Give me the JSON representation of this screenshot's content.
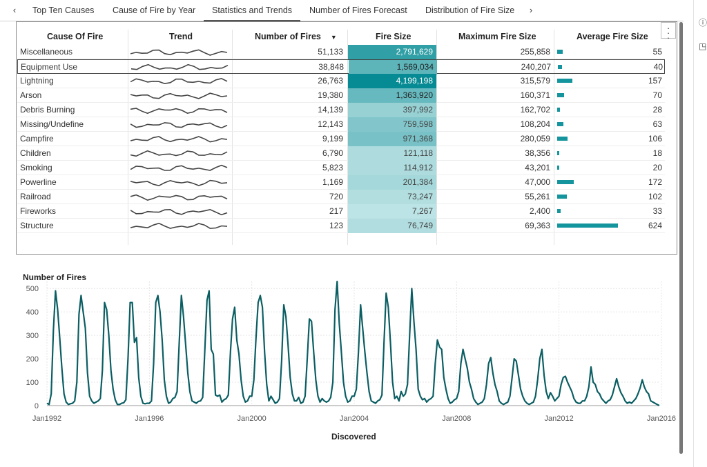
{
  "tabs": {
    "prev_icon": "chevron-left-icon",
    "next_icon": "chevron-right-icon",
    "items": [
      {
        "label": "Top Ten Causes"
      },
      {
        "label": "Cause of Fire by Year"
      },
      {
        "label": "Statistics and Trends"
      },
      {
        "label": "Number of Fires Forecast"
      },
      {
        "label": "Distribution of Fire Size"
      }
    ],
    "active_index": 2
  },
  "table": {
    "headers": {
      "cause": "Cause Of Fire",
      "trend": "Trend",
      "num_fires": "Number of Fires",
      "fire_size": "Fire Size",
      "max_fire_size": "Maximum Fire Size",
      "avg_fire_size": "Average Fire Size"
    },
    "sort_indicator": "▼",
    "selected_row": 1,
    "rows": [
      {
        "cause": "Miscellaneous",
        "num_fires": "51,133",
        "fire_size": "2,791,629",
        "max_fire_size": "255,858",
        "avg_fire_size": "55",
        "avg_value": 55,
        "fire_size_value": 2791629,
        "fire_size_text_color": "#ffffff"
      },
      {
        "cause": "Equipment Use",
        "num_fires": "38,848",
        "fire_size": "1,569,034",
        "max_fire_size": "240,207",
        "avg_fire_size": "40",
        "avg_value": 40,
        "fire_size_value": 1569034,
        "fire_size_text_color": "#222222"
      },
      {
        "cause": "Lightning",
        "num_fires": "26,763",
        "fire_size": "4,199,198",
        "max_fire_size": "315,579",
        "avg_fire_size": "157",
        "avg_value": 157,
        "fire_size_value": 4199198,
        "fire_size_text_color": "#ffffff"
      },
      {
        "cause": "Arson",
        "num_fires": "19,380",
        "fire_size": "1,363,920",
        "max_fire_size": "160,371",
        "avg_fire_size": "70",
        "avg_value": 70,
        "fire_size_value": 1363920,
        "fire_size_text_color": "#222222"
      },
      {
        "cause": "Debris Burning",
        "num_fires": "14,139",
        "fire_size": "397,992",
        "max_fire_size": "162,702",
        "avg_fire_size": "28",
        "avg_value": 28,
        "fire_size_value": 397992,
        "fire_size_text_color": "#444444"
      },
      {
        "cause": "Missing/Undefine",
        "num_fires": "12,143",
        "fire_size": "759,598",
        "max_fire_size": "108,204",
        "avg_fire_size": "63",
        "avg_value": 63,
        "fire_size_value": 759598,
        "fire_size_text_color": "#444444"
      },
      {
        "cause": "Campfire",
        "num_fires": "9,199",
        "fire_size": "971,368",
        "max_fire_size": "280,059",
        "avg_fire_size": "106",
        "avg_value": 106,
        "fire_size_value": 971368,
        "fire_size_text_color": "#444444"
      },
      {
        "cause": "Children",
        "num_fires": "6,790",
        "fire_size": "121,118",
        "max_fire_size": "38,356",
        "avg_fire_size": "18",
        "avg_value": 18,
        "fire_size_value": 121118,
        "fire_size_text_color": "#444444"
      },
      {
        "cause": "Smoking",
        "num_fires": "5,823",
        "fire_size": "114,912",
        "max_fire_size": "43,201",
        "avg_fire_size": "20",
        "avg_value": 20,
        "fire_size_value": 114912,
        "fire_size_text_color": "#444444"
      },
      {
        "cause": "Powerline",
        "num_fires": "1,169",
        "fire_size": "201,384",
        "max_fire_size": "47,000",
        "avg_fire_size": "172",
        "avg_value": 172,
        "fire_size_value": 201384,
        "fire_size_text_color": "#444444"
      },
      {
        "cause": "Railroad",
        "num_fires": "720",
        "fire_size": "73,247",
        "max_fire_size": "55,261",
        "avg_fire_size": "102",
        "avg_value": 102,
        "fire_size_value": 73247,
        "fire_size_text_color": "#444444"
      },
      {
        "cause": "Fireworks",
        "num_fires": "217",
        "fire_size": "7,267",
        "max_fire_size": "2,400",
        "avg_fire_size": "33",
        "avg_value": 33,
        "fire_size_value": 7267,
        "fire_size_text_color": "#444444"
      },
      {
        "cause": "Structure",
        "num_fires": "123",
        "fire_size": "76,749",
        "max_fire_size": "69,363",
        "avg_fire_size": "624",
        "avg_value": 624,
        "fire_size_value": 76749,
        "fire_size_text_color": "#444444"
      }
    ],
    "colors": {
      "heat_low": "#bfe4e6",
      "heat_high": "#068a93",
      "avg_bar": "#14959e",
      "trend_line": "#444444"
    }
  },
  "chart_data": {
    "type": "line",
    "title": "",
    "ylabel": "Number of Fires",
    "xlabel": "Discovered",
    "ylim": [
      0,
      530
    ],
    "yticks": [
      0,
      100,
      200,
      300,
      400,
      500
    ],
    "xticks": [
      "Jan1992",
      "Jan1996",
      "Jan2000",
      "Jan2004",
      "Jan2008",
      "Jan2012",
      "Jan2016"
    ],
    "xtick_years": [
      1992,
      1996,
      2000,
      2004,
      2008,
      2012,
      2016
    ],
    "x_start_year": 1992,
    "x_end_year": 2015.92,
    "line_color": "#0b5e63",
    "grid": true,
    "series": [
      {
        "values": [
          10,
          5,
          50,
          320,
          490,
          410,
          290,
          160,
          50,
          15,
          5,
          8,
          10,
          20,
          100,
          390,
          470,
          400,
          330,
          140,
          40,
          20,
          10,
          15,
          20,
          30,
          150,
          440,
          410,
          300,
          150,
          70,
          25,
          5,
          5,
          10,
          12,
          25,
          200,
          440,
          440,
          270,
          290,
          120,
          40,
          10,
          8,
          10,
          10,
          20,
          180,
          440,
          470,
          400,
          280,
          110,
          40,
          10,
          15,
          30,
          35,
          60,
          270,
          470,
          380,
          260,
          140,
          60,
          20,
          15,
          10,
          18,
          20,
          35,
          240,
          450,
          490,
          240,
          220,
          45,
          40,
          45,
          15,
          25,
          30,
          45,
          230,
          370,
          420,
          280,
          220,
          110,
          40,
          15,
          20,
          40,
          40,
          110,
          290,
          440,
          470,
          420,
          230,
          90,
          20,
          40,
          25,
          10,
          15,
          30,
          190,
          430,
          380,
          260,
          120,
          50,
          20,
          20,
          35,
          10,
          15,
          40,
          200,
          370,
          360,
          230,
          110,
          40,
          15,
          30,
          20,
          15,
          20,
          35,
          100,
          410,
          530,
          350,
          230,
          100,
          40,
          15,
          20,
          40,
          40,
          70,
          230,
          430,
          330,
          230,
          140,
          60,
          20,
          15,
          10,
          20,
          25,
          45,
          270,
          480,
          420,
          270,
          100,
          30,
          40,
          20,
          60,
          40,
          50,
          90,
          300,
          500,
          360,
          240,
          70,
          40,
          25,
          30,
          15,
          25,
          30,
          40,
          180,
          280,
          250,
          240,
          120,
          70,
          30,
          10,
          15,
          25,
          30,
          60,
          180,
          240,
          200,
          160,
          100,
          70,
          30,
          15,
          5,
          10,
          15,
          30,
          90,
          180,
          205,
          140,
          90,
          60,
          20,
          10,
          5,
          10,
          15,
          40,
          120,
          200,
          190,
          130,
          70,
          40,
          20,
          10,
          5,
          10,
          15,
          40,
          110,
          200,
          240,
          130,
          60,
          30,
          55,
          40,
          20,
          30,
          40,
          90,
          120,
          125,
          100,
          80,
          60,
          30,
          15,
          10,
          10,
          20,
          20,
          40,
          80,
          165,
          100,
          90,
          60,
          50,
          30,
          20,
          10,
          20,
          25,
          45,
          80,
          115,
          80,
          55,
          40,
          20,
          10,
          15,
          10,
          20,
          30,
          50,
          75,
          110,
          80,
          60,
          50,
          20,
          15,
          10,
          5,
          0
        ]
      }
    ]
  }
}
